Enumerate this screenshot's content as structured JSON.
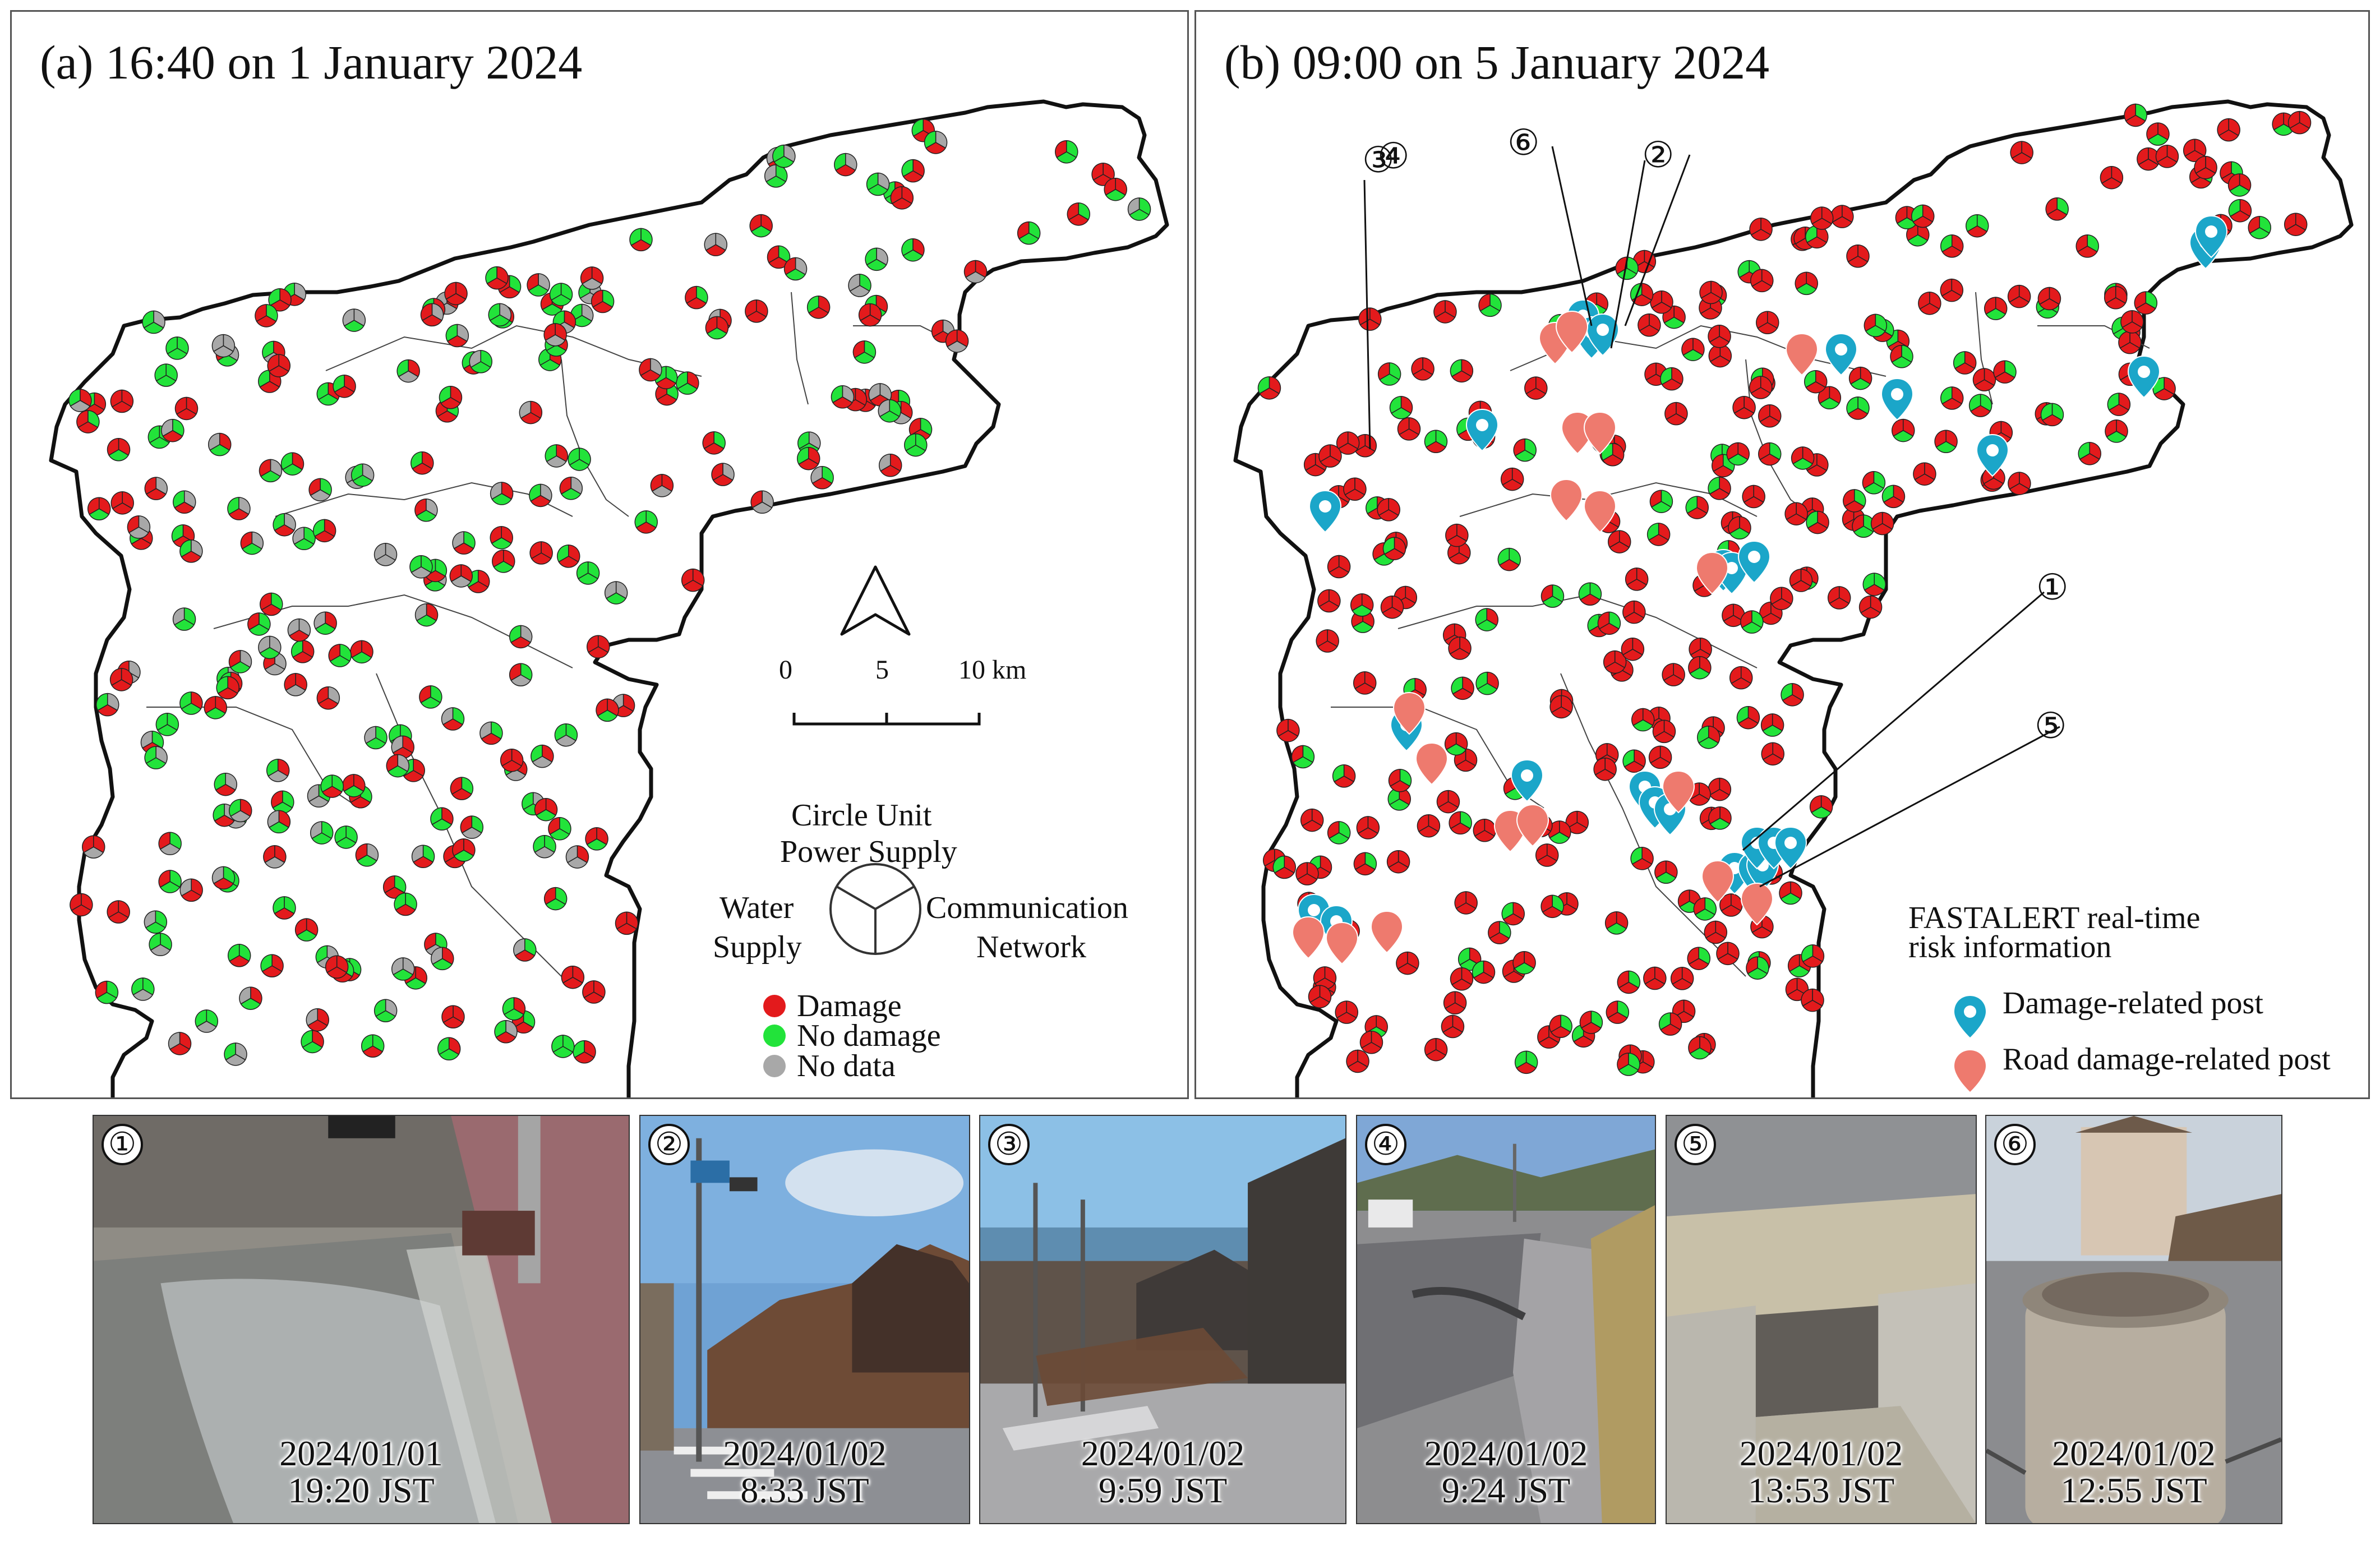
{
  "panel_a": {
    "title": "(a) 16:40 on 1 January 2024",
    "scale": {
      "ticks": [
        "0",
        "5",
        "10 km"
      ]
    },
    "circle_unit": {
      "heading": "Circle Unit",
      "top": "Power Supply",
      "left_line1": "Water",
      "left_line2": "Supply",
      "right_line1": "Communication",
      "right_line2": "Network"
    },
    "legend": [
      {
        "label": "Damage",
        "color": "#e31a1c"
      },
      {
        "label": "No damage",
        "color": "#22e33a"
      },
      {
        "label": "No data",
        "color": "#a8a8a8"
      }
    ]
  },
  "panel_b": {
    "title": "(b) 09:00 on 5 January 2024",
    "legend_heading_line1": "FASTALERT real-time",
    "legend_heading_line2": "risk information",
    "legend": [
      {
        "label": "Damage-related post",
        "color": "#1ba6c9"
      },
      {
        "label": "Road damage-related post",
        "color": "#ee7a6e"
      }
    ],
    "callouts": [
      "①",
      "②",
      "③",
      "④",
      "⑤",
      "⑥"
    ]
  },
  "photos": [
    {
      "num": "①",
      "date": "2024/01/01",
      "time": "19:20 JST"
    },
    {
      "num": "②",
      "date": "2024/01/02",
      "time": "8:33 JST"
    },
    {
      "num": "③",
      "date": "2024/01/02",
      "time": "9:59 JST"
    },
    {
      "num": "④",
      "date": "2024/01/02",
      "time": "9:24 JST"
    },
    {
      "num": "⑤",
      "date": "2024/01/02",
      "time": "13:53 JST"
    },
    {
      "num": "⑥",
      "date": "2024/01/02",
      "time": "12:55 JST"
    }
  ]
}
